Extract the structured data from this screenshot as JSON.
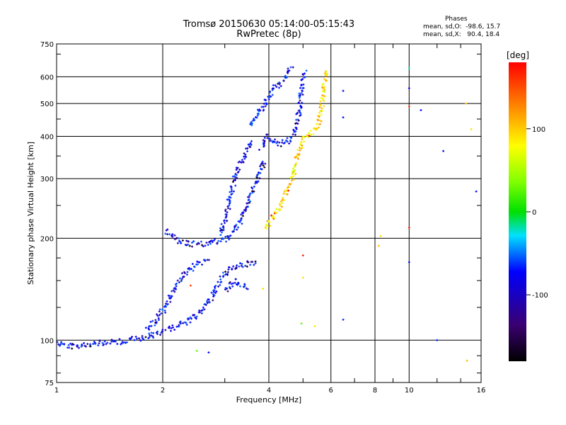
{
  "header": {
    "title_line1": "Tromsø 20150630 05:14:00-05:15:43",
    "title_line2": "RwPretec (8p)",
    "stats_title": "Phases",
    "stats_line1": "mean, sd,O:  -98.6, 15.7",
    "stats_line2": "mean, sd,X:   90.4, 18.4"
  },
  "chart_data": {
    "type": "scatter",
    "title": "Tromsø 20150630 05:14:00-05:15:43",
    "subtitle": "RwPretec (8p)",
    "xlabel": "Frequency [MHz]",
    "ylabel": "Stationary phase Virtual Height [km]",
    "x_scale": "log",
    "y_scale": "log",
    "xlim": [
      1,
      16
    ],
    "ylim": [
      75,
      750
    ],
    "x_ticks": [
      1,
      2,
      4,
      6,
      8,
      10,
      16
    ],
    "y_ticks": [
      75,
      100,
      200,
      300,
      400,
      500,
      600,
      750
    ],
    "x_tick_labels": [
      "1",
      "2",
      "4",
      "6",
      "8",
      "10",
      "16"
    ],
    "y_tick_labels": [
      "75",
      "100",
      "200",
      "300",
      "400",
      "500",
      "600",
      "750"
    ],
    "grid": true,
    "colorbar": {
      "label": "[deg]",
      "range": [
        -180,
        180
      ],
      "ticks": [
        100,
        0,
        -100
      ],
      "tick_labels": [
        "100",
        "0",
        "-100"
      ]
    },
    "series": [
      {
        "name": "O",
        "phase_deg": -100,
        "traces": [
          {
            "x": [
              1.0,
              1.1,
              1.2,
              1.35,
              1.5,
              1.7,
              1.9,
              2.1,
              2.3,
              2.5,
              2.7,
              2.9,
              3.1,
              3.3,
              3.5,
              3.7
            ],
            "y": [
              98,
              96,
              97,
              98,
              99,
              101,
              104,
              108,
              112,
              118,
              130,
              150,
              162,
              166,
              168,
              170
            ]
          },
          {
            "x": [
              1.8,
              1.9,
              2.0,
              2.1,
              2.2,
              2.35,
              2.5,
              2.7
            ],
            "y": [
              108,
              113,
              122,
              133,
              147,
              160,
              168,
              172
            ]
          },
          {
            "x": [
              2.05,
              2.2,
              2.4,
              2.6,
              2.8,
              3.0,
              3.1,
              3.3,
              3.5,
              3.7,
              3.9
            ],
            "y": [
              210,
              197,
              192,
              193,
              196,
              197,
              205,
              222,
              255,
              300,
              340
            ]
          },
          {
            "x": [
              2.9,
              3.0,
              3.1,
              3.2,
              3.3,
              3.45,
              3.6
            ],
            "y": [
              205,
              225,
              260,
              300,
              330,
              360,
              390
            ]
          },
          {
            "x": [
              3.8,
              3.95,
              4.1,
              4.3,
              4.5,
              4.7,
              4.85,
              4.95,
              5.05
            ],
            "y": [
              370,
              400,
              390,
              380,
              385,
              405,
              460,
              540,
              630
            ]
          },
          {
            "x": [
              3.5,
              3.7,
              3.85,
              4.0,
              4.1,
              4.3,
              4.5,
              4.65
            ],
            "y": [
              430,
              460,
              490,
              525,
              550,
              575,
              610,
              640
            ]
          },
          {
            "x": [
              3.0,
              3.1,
              3.2,
              3.3,
              3.4,
              3.5
            ],
            "y": [
              140,
              146,
              150,
              148,
              144,
              142
            ]
          }
        ]
      },
      {
        "name": "X",
        "phase_deg": 100,
        "traces": [
          {
            "x": [
              3.9,
              4.0,
              4.1,
              4.2,
              4.3,
              4.4,
              4.5,
              4.6,
              4.7,
              4.8,
              4.9,
              5.0,
              5.2,
              5.4,
              5.55,
              5.7,
              5.8
            ],
            "y": [
              215,
              220,
              228,
              238,
              250,
              262,
              275,
              292,
              312,
              340,
              368,
              392,
              405,
              415,
              440,
              520,
              630
            ]
          }
        ]
      }
    ],
    "sparse_points": [
      {
        "x": 6.5,
        "y": 545,
        "phase_deg": -100
      },
      {
        "x": 6.5,
        "y": 455,
        "phase_deg": -100
      },
      {
        "x": 6.5,
        "y": 115,
        "phase_deg": -90
      },
      {
        "x": 10.0,
        "y": 635,
        "phase_deg": -20
      },
      {
        "x": 10.0,
        "y": 555,
        "phase_deg": -100
      },
      {
        "x": 10.0,
        "y": 490,
        "phase_deg": 160
      },
      {
        "x": 10.0,
        "y": 170,
        "phase_deg": -100
      },
      {
        "x": 10.0,
        "y": 215,
        "phase_deg": 170
      },
      {
        "x": 10.8,
        "y": 478,
        "phase_deg": -100
      },
      {
        "x": 12.5,
        "y": 362,
        "phase_deg": -100
      },
      {
        "x": 12.0,
        "y": 100,
        "phase_deg": -90
      },
      {
        "x": 14.5,
        "y": 500,
        "phase_deg": 110
      },
      {
        "x": 15.0,
        "y": 420,
        "phase_deg": 100
      },
      {
        "x": 15.5,
        "y": 275,
        "phase_deg": -100
      },
      {
        "x": 14.6,
        "y": 87,
        "phase_deg": 110
      },
      {
        "x": 8.3,
        "y": 203,
        "phase_deg": 100
      },
      {
        "x": 8.2,
        "y": 190,
        "phase_deg": 110
      },
      {
        "x": 5.0,
        "y": 178,
        "phase_deg": 170
      },
      {
        "x": 5.0,
        "y": 153,
        "phase_deg": 100
      },
      {
        "x": 4.95,
        "y": 112,
        "phase_deg": 30
      },
      {
        "x": 5.4,
        "y": 110,
        "phase_deg": 100
      },
      {
        "x": 3.85,
        "y": 142,
        "phase_deg": 100
      },
      {
        "x": 2.5,
        "y": 93,
        "phase_deg": 30
      },
      {
        "x": 2.7,
        "y": 92,
        "phase_deg": -100
      },
      {
        "x": 2.4,
        "y": 145,
        "phase_deg": 160
      }
    ]
  }
}
